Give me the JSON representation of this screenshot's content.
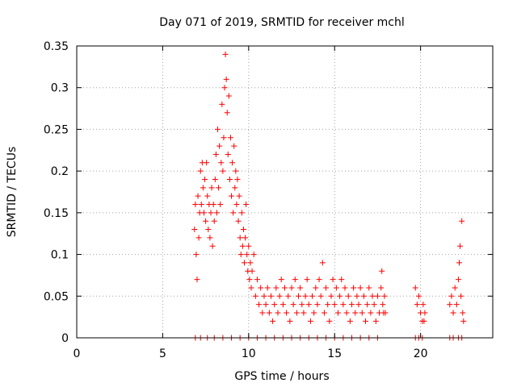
{
  "chart_data": {
    "type": "scatter",
    "title": "Day 071 of 2019, SRMTID for receiver mchl",
    "xlabel": "GPS time / hours",
    "ylabel": "SRMTID / TECUs",
    "xlim": [
      0,
      24.2
    ],
    "ylim": [
      0,
      0.35
    ],
    "xticks": [
      0,
      5,
      10,
      15,
      20
    ],
    "xtick_labels": [
      "0",
      "5",
      "10",
      "15",
      "20"
    ],
    "yticks": [
      0,
      0.05,
      0.1,
      0.15,
      0.2,
      0.25,
      0.3,
      0.35
    ],
    "ytick_labels": [
      "0",
      "0.05",
      "0.1",
      "0.15",
      "0.2",
      "0.25",
      "0.3",
      "0.35"
    ],
    "grid": true,
    "legend": "none",
    "marker": "+",
    "color": "#ff0000",
    "series": [
      {
        "name": "SRMTID",
        "points": [
          [
            6.85,
            0.13
          ],
          [
            6.9,
            0.16
          ],
          [
            6.95,
            0.1
          ],
          [
            7.0,
            0.07
          ],
          [
            7.05,
            0.17
          ],
          [
            7.1,
            0.12
          ],
          [
            7.15,
            0.15
          ],
          [
            7.2,
            0.2
          ],
          [
            7.25,
            0.16
          ],
          [
            7.3,
            0.21
          ],
          [
            7.35,
            0.18
          ],
          [
            7.4,
            0.15
          ],
          [
            7.45,
            0.19
          ],
          [
            7.5,
            0.14
          ],
          [
            7.55,
            0.21
          ],
          [
            7.6,
            0.17
          ],
          [
            7.65,
            0.13
          ],
          [
            7.7,
            0.16
          ],
          [
            7.75,
            0.12
          ],
          [
            7.8,
            0.15
          ],
          [
            7.85,
            0.18
          ],
          [
            7.9,
            0.11
          ],
          [
            7.95,
            0.16
          ],
          [
            8.0,
            0.14
          ],
          [
            8.05,
            0.19
          ],
          [
            8.1,
            0.22
          ],
          [
            8.15,
            0.15
          ],
          [
            8.2,
            0.25
          ],
          [
            8.25,
            0.18
          ],
          [
            8.3,
            0.23
          ],
          [
            8.35,
            0.16
          ],
          [
            8.4,
            0.21
          ],
          [
            8.45,
            0.28
          ],
          [
            8.5,
            0.2
          ],
          [
            8.55,
            0.24
          ],
          [
            8.6,
            0.3
          ],
          [
            8.65,
            0.34
          ],
          [
            8.7,
            0.31
          ],
          [
            8.75,
            0.27
          ],
          [
            8.8,
            0.22
          ],
          [
            8.85,
            0.29
          ],
          [
            8.9,
            0.19
          ],
          [
            8.95,
            0.24
          ],
          [
            9.0,
            0.17
          ],
          [
            9.05,
            0.21
          ],
          [
            9.1,
            0.15
          ],
          [
            9.15,
            0.23
          ],
          [
            9.2,
            0.18
          ],
          [
            9.25,
            0.2
          ],
          [
            9.3,
            0.16
          ],
          [
            9.35,
            0.19
          ],
          [
            9.4,
            0.14
          ],
          [
            9.45,
            0.17
          ],
          [
            9.5,
            0.12
          ],
          [
            9.55,
            0.1
          ],
          [
            9.6,
            0.15
          ],
          [
            9.65,
            0.11
          ],
          [
            9.7,
            0.13
          ],
          [
            9.75,
            0.09
          ],
          [
            9.8,
            0.12
          ],
          [
            9.85,
            0.16
          ],
          [
            9.9,
            0.1
          ],
          [
            9.95,
            0.08
          ],
          [
            10.0,
            0.11
          ],
          [
            10.05,
            0.07
          ],
          [
            10.1,
            0.09
          ],
          [
            10.15,
            0.06
          ],
          [
            10.2,
            0.08
          ],
          [
            10.3,
            0.1
          ],
          [
            10.4,
            0.05
          ],
          [
            10.5,
            0.07
          ],
          [
            10.6,
            0.04
          ],
          [
            10.7,
            0.06
          ],
          [
            10.8,
            0.03
          ],
          [
            10.9,
            0.05
          ],
          [
            11.0,
            0.04
          ],
          [
            11.1,
            0.06
          ],
          [
            11.2,
            0.03
          ],
          [
            11.3,
            0.05
          ],
          [
            11.4,
            0.02
          ],
          [
            11.5,
            0.04
          ],
          [
            11.6,
            0.06
          ],
          [
            11.7,
            0.03
          ],
          [
            11.8,
            0.05
          ],
          [
            11.9,
            0.07
          ],
          [
            12.0,
            0.04
          ],
          [
            12.1,
            0.06
          ],
          [
            12.2,
            0.03
          ],
          [
            12.3,
            0.05
          ],
          [
            12.4,
            0.02
          ],
          [
            12.5,
            0.06
          ],
          [
            12.6,
            0.04
          ],
          [
            12.7,
            0.07
          ],
          [
            12.8,
            0.03
          ],
          [
            12.9,
            0.05
          ],
          [
            13.0,
            0.06
          ],
          [
            13.1,
            0.04
          ],
          [
            13.2,
            0.03
          ],
          [
            13.3,
            0.05
          ],
          [
            13.4,
            0.07
          ],
          [
            13.5,
            0.04
          ],
          [
            13.6,
            0.02
          ],
          [
            13.7,
            0.05
          ],
          [
            13.8,
            0.03
          ],
          [
            13.9,
            0.06
          ],
          [
            14.0,
            0.04
          ],
          [
            14.1,
            0.07
          ],
          [
            14.2,
            0.05
          ],
          [
            14.3,
            0.09
          ],
          [
            14.4,
            0.03
          ],
          [
            14.5,
            0.06
          ],
          [
            14.6,
            0.04
          ],
          [
            14.7,
            0.02
          ],
          [
            14.8,
            0.05
          ],
          [
            14.9,
            0.07
          ],
          [
            15.0,
            0.04
          ],
          [
            15.1,
            0.06
          ],
          [
            15.2,
            0.03
          ],
          [
            15.3,
            0.05
          ],
          [
            15.4,
            0.07
          ],
          [
            15.5,
            0.04
          ],
          [
            15.6,
            0.06
          ],
          [
            15.7,
            0.03
          ],
          [
            15.8,
            0.05
          ],
          [
            15.9,
            0.02
          ],
          [
            16.0,
            0.04
          ],
          [
            16.1,
            0.06
          ],
          [
            16.2,
            0.03
          ],
          [
            16.3,
            0.05
          ],
          [
            16.4,
            0.04
          ],
          [
            16.5,
            0.06
          ],
          [
            16.6,
            0.03
          ],
          [
            16.7,
            0.05
          ],
          [
            16.8,
            0.02
          ],
          [
            16.9,
            0.04
          ],
          [
            17.0,
            0.06
          ],
          [
            17.1,
            0.03
          ],
          [
            17.2,
            0.05
          ],
          [
            17.3,
            0.04
          ],
          [
            17.4,
            0.02
          ],
          [
            17.5,
            0.05
          ],
          [
            17.6,
            0.03
          ],
          [
            17.7,
            0.06
          ],
          [
            17.75,
            0.08
          ],
          [
            17.8,
            0.04
          ],
          [
            17.85,
            0.03
          ],
          [
            17.9,
            0.05
          ],
          [
            17.95,
            0.03
          ],
          [
            19.7,
            0.06
          ],
          [
            19.8,
            0.04
          ],
          [
            19.9,
            0.05
          ],
          [
            20.0,
            0.03
          ],
          [
            20.1,
            0.02
          ],
          [
            20.15,
            0.04
          ],
          [
            20.2,
            0.02
          ],
          [
            20.25,
            0.03
          ],
          [
            21.7,
            0.04
          ],
          [
            21.8,
            0.05
          ],
          [
            21.9,
            0.03
          ],
          [
            22.0,
            0.06
          ],
          [
            22.1,
            0.04
          ],
          [
            22.2,
            0.07
          ],
          [
            22.25,
            0.09
          ],
          [
            22.3,
            0.11
          ],
          [
            22.35,
            0.05
          ],
          [
            22.4,
            0.14
          ],
          [
            22.45,
            0.03
          ],
          [
            22.5,
            0.02
          ],
          [
            6.9,
            0.0
          ],
          [
            7.2,
            0.0
          ],
          [
            7.6,
            0.0
          ],
          [
            8.0,
            0.0
          ],
          [
            8.5,
            0.0
          ],
          [
            9.0,
            0.0
          ],
          [
            9.5,
            0.0
          ],
          [
            10.0,
            0.0
          ],
          [
            10.5,
            0.0
          ],
          [
            11.0,
            0.0
          ],
          [
            11.5,
            0.0
          ],
          [
            12.0,
            0.0
          ],
          [
            12.5,
            0.0
          ],
          [
            13.0,
            0.0
          ],
          [
            13.5,
            0.0
          ],
          [
            14.0,
            0.0
          ],
          [
            14.5,
            0.0
          ],
          [
            15.0,
            0.0
          ],
          [
            15.5,
            0.0
          ],
          [
            16.0,
            0.0
          ],
          [
            16.5,
            0.0
          ],
          [
            17.0,
            0.0
          ],
          [
            17.5,
            0.0
          ],
          [
            19.7,
            0.0
          ],
          [
            19.9,
            0.0
          ],
          [
            20.1,
            0.0
          ],
          [
            21.7,
            0.0
          ],
          [
            21.9,
            0.0
          ],
          [
            22.2,
            0.0
          ],
          [
            22.4,
            0.0
          ]
        ]
      }
    ]
  }
}
